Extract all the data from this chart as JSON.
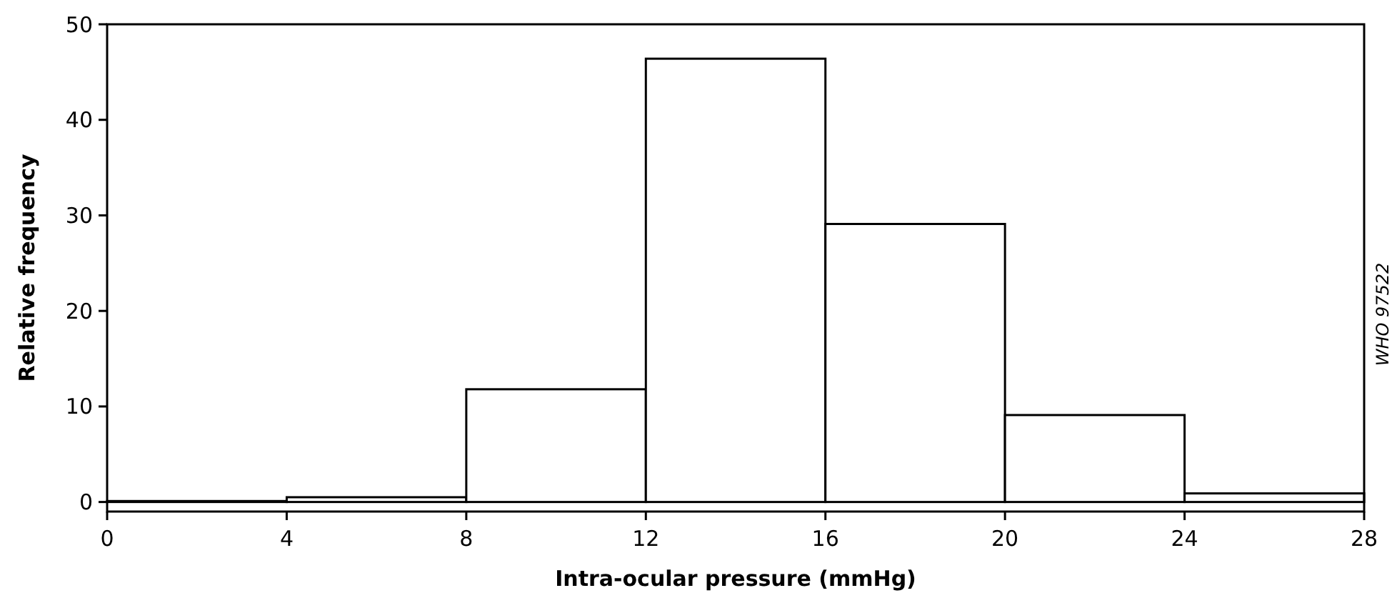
{
  "chart_data": {
    "type": "histogram",
    "xlabel": "Intra-ocular pressure (mmHg)",
    "ylabel": "Relative frequency",
    "bins": [
      0,
      4,
      8,
      12,
      16,
      20,
      24,
      28
    ],
    "values": [
      0.1,
      0.5,
      11.8,
      46.4,
      29.1,
      9.1,
      0.9
    ],
    "color": "#ffffff",
    "xlim": [
      0,
      28
    ],
    "xticks": [
      0,
      4,
      8,
      12,
      16,
      20,
      24,
      28
    ],
    "ylim": [
      -1,
      50
    ],
    "yticks": [
      0,
      10,
      20,
      30,
      40,
      50
    ],
    "grid": false,
    "annotations": [
      "WHO 97522"
    ]
  }
}
